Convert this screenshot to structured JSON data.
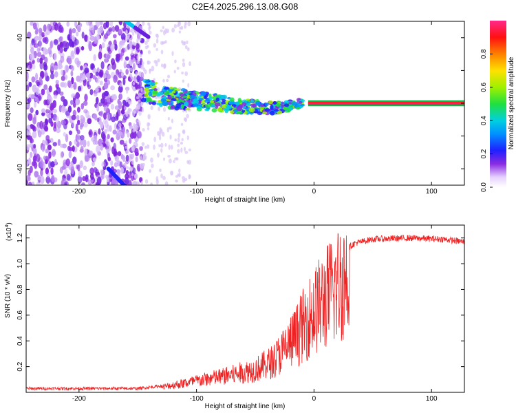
{
  "title": "C2E4.2025.296.13.08.G08",
  "colors": {
    "snr_line": "#ee2222",
    "track_core": "#ff2020",
    "axis": "#000000",
    "background": "#ffffff"
  },
  "chart_data": [
    {
      "type": "heatmap",
      "name": "spectrogram",
      "title": "C2E4.2025.296.13.08.G08",
      "xlabel": "Height of straight line (km)",
      "ylabel": "Frequency (Hz)",
      "xlim": [
        -245,
        128
      ],
      "ylim": [
        -50,
        50
      ],
      "xticks": [
        -200,
        -100,
        0,
        100
      ],
      "xtick_labels": [
        "-200",
        "-100",
        "0",
        "100"
      ],
      "yticks": [
        -40,
        -20,
        0,
        20,
        40
      ],
      "ytick_labels": [
        "-40",
        "-20",
        "0",
        "20",
        "40"
      ],
      "colorbar": {
        "label": "Normalized spectral amplitude",
        "range": [
          0,
          1
        ],
        "ticks": [
          0.0,
          0.2,
          0.4,
          0.6,
          0.8
        ],
        "tick_labels": [
          "0.0",
          "0.2",
          "0.4",
          "0.6",
          "0.8"
        ]
      },
      "track": {
        "description_points": [
          {
            "x": -145,
            "freq": 8
          },
          {
            "x": -120,
            "freq": 3
          },
          {
            "x": -90,
            "freq": 1
          },
          {
            "x": -60,
            "freq": -2
          },
          {
            "x": -30,
            "freq": -3
          },
          {
            "x": -10,
            "freq": 0
          },
          {
            "x": 0,
            "freq": 2
          },
          {
            "x": 10,
            "freq": 0
          },
          {
            "x": 128,
            "freq": 0
          }
        ]
      }
    },
    {
      "type": "line",
      "name": "snr",
      "xlabel": "Height of straight line (km)",
      "ylabel": "SNR (10 * v/v)",
      "multiplier_label": "(x10",
      "multiplier_exp": "4",
      "xlim": [
        -245,
        128
      ],
      "ylim": [
        0,
        1.3
      ],
      "xticks": [
        -200,
        -100,
        0,
        100
      ],
      "xtick_labels": [
        "-200",
        "-100",
        "0",
        "100"
      ],
      "yticks": [
        0.2,
        0.4,
        0.6,
        0.8,
        1.0,
        1.2
      ],
      "ytick_labels": [
        "0.2",
        "0.4",
        "0.6",
        "0.8",
        "1.0",
        "1.2"
      ],
      "envelope_points": [
        {
          "x": -245,
          "y": 0.03
        },
        {
          "x": -150,
          "y": 0.03
        },
        {
          "x": -130,
          "y": 0.05
        },
        {
          "x": -110,
          "y": 0.09
        },
        {
          "x": -90,
          "y": 0.13
        },
        {
          "x": -70,
          "y": 0.17
        },
        {
          "x": -50,
          "y": 0.22
        },
        {
          "x": -35,
          "y": 0.3
        },
        {
          "x": -25,
          "y": 0.42
        },
        {
          "x": -15,
          "y": 0.55
        },
        {
          "x": -5,
          "y": 0.72
        },
        {
          "x": 5,
          "y": 0.85
        },
        {
          "x": 15,
          "y": 0.98
        },
        {
          "x": 25,
          "y": 1.1
        },
        {
          "x": 35,
          "y": 1.16
        },
        {
          "x": 50,
          "y": 1.19
        },
        {
          "x": 80,
          "y": 1.2
        },
        {
          "x": 110,
          "y": 1.19
        },
        {
          "x": 128,
          "y": 1.17
        }
      ]
    }
  ]
}
